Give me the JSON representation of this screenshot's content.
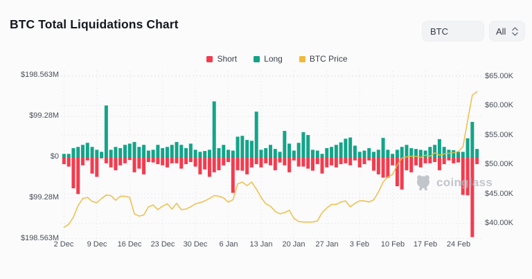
{
  "header": {
    "title": "BTC Total Liquidations Chart",
    "coin_select": "BTC",
    "range_select": "All"
  },
  "legend": [
    {
      "label": "Short",
      "color": "#f23c4e"
    },
    {
      "label": "Long",
      "color": "#13a287"
    },
    {
      "label": "BTC Price",
      "color": "#f0b93c"
    }
  ],
  "watermark": "coinglass",
  "chart_data": {
    "type": "combo_bar_line",
    "title": "BTC Total Liquidations Chart",
    "n_days": 89,
    "x_tick_interval_days": 7,
    "x_ticks": [
      "2 Dec",
      "9 Dec",
      "16 Dec",
      "23 Dec",
      "30 Dec",
      "6 Jan",
      "13 Jan",
      "20 Jan",
      "27 Jan",
      "3 Feb",
      "10 Feb",
      "17 Feb",
      "24 Feb"
    ],
    "y_left_ticks": [
      "$198.563M",
      "$99.28M",
      "$0",
      "$99.28M",
      "$198.563M"
    ],
    "y_left_max_m": 198.563,
    "y_right_ticks": [
      "$65.00K",
      "$60.00K",
      "$55.00K",
      "$50.00K",
      "$45.00K",
      "$40.00K"
    ],
    "y_right_range_k": [
      40,
      65
    ],
    "grid": "dashed",
    "legend_position": "top-center",
    "series": [
      {
        "name": "Short",
        "type": "bar",
        "direction": "down",
        "color": "#f23c4e",
        "unit": "M USD",
        "values": [
          17,
          23,
          76,
          90,
          20,
          8,
          40,
          48,
          3,
          15,
          25,
          32,
          20,
          15,
          7,
          37,
          28,
          42,
          12,
          13,
          17,
          20,
          25,
          15,
          15,
          28,
          17,
          12,
          23,
          42,
          30,
          48,
          37,
          32,
          20,
          12,
          87,
          32,
          33,
          42,
          25,
          17,
          25,
          15,
          20,
          32,
          13,
          20,
          37,
          8,
          23,
          23,
          28,
          33,
          17,
          40,
          25,
          20,
          25,
          17,
          15,
          20,
          8,
          25,
          17,
          8,
          33,
          42,
          50,
          50,
          20,
          71,
          79,
          32,
          37,
          20,
          25,
          15,
          15,
          12,
          32,
          17,
          8,
          15,
          13,
          92,
          93,
          195,
          17
        ]
      },
      {
        "name": "Long",
        "type": "bar",
        "direction": "up",
        "color": "#14a489",
        "unit": "M USD",
        "values": [
          8,
          8,
          22,
          25,
          30,
          35,
          25,
          18,
          13,
          126,
          18,
          25,
          22,
          30,
          33,
          37,
          25,
          30,
          16,
          18,
          30,
          22,
          25,
          30,
          37,
          30,
          22,
          33,
          18,
          13,
          15,
          18,
          136,
          22,
          30,
          18,
          16,
          50,
          52,
          42,
          40,
          111,
          18,
          22,
          30,
          20,
          13,
          64,
          33,
          16,
          35,
          61,
          54,
          18,
          16,
          8,
          22,
          25,
          30,
          36,
          45,
          48,
          28,
          13,
          16,
          22,
          13,
          18,
          47,
          18,
          8,
          18,
          25,
          30,
          22,
          20,
          18,
          16,
          25,
          30,
          44,
          25,
          18,
          17,
          13,
          13,
          46,
          86,
          20
        ]
      },
      {
        "name": "BTC Price",
        "type": "line",
        "color": "#f0b93c",
        "unit": "K USD",
        "values": [
          39.3,
          39.8,
          41.0,
          43.0,
          44.2,
          44.4,
          43.7,
          43.5,
          44.2,
          44.8,
          44.7,
          43.9,
          44.6,
          44.6,
          44.4,
          41.6,
          41.2,
          41.4,
          42.8,
          43.1,
          42.3,
          42.9,
          43.3,
          42.4,
          43.4,
          42.3,
          42.4,
          42.8,
          43.3,
          43.5,
          43.8,
          44.2,
          44.7,
          44.6,
          44.3,
          43.6,
          44.0,
          46.7,
          47.0,
          46.4,
          47.0,
          45.8,
          44.4,
          43.3,
          42.9,
          42.0,
          41.6,
          41.8,
          42.2,
          40.8,
          40.3,
          40.2,
          40.2,
          40.2,
          40.4,
          41.8,
          42.6,
          43.2,
          43.2,
          43.6,
          43.8,
          42.8,
          43.4,
          43.8,
          43.8,
          43.6,
          44.0,
          45.3,
          47.0,
          47.9,
          48.3,
          49.9,
          51.1,
          51.3,
          51.4,
          51.4,
          51.2,
          51.6,
          51.4,
          52.0,
          51.6,
          51.8,
          51.9,
          52.0,
          52.2,
          53.0,
          57.5,
          61.8,
          62.4
        ]
      }
    ]
  }
}
